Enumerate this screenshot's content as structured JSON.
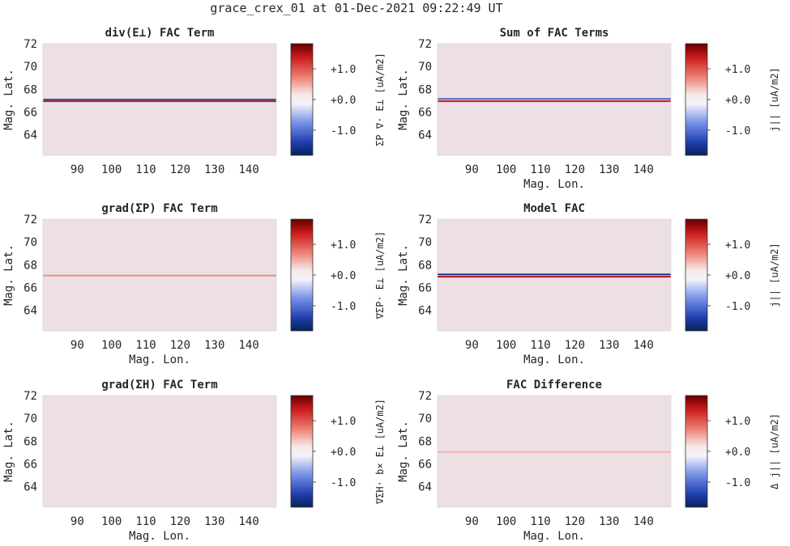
{
  "figure": {
    "suptitle": "grace_crex_01 at 01-Dec-2021 09:22:49 UT",
    "background_color": "#ece0e4",
    "colormap": "blue-white-red diverging"
  },
  "chart_data": [
    {
      "type": "heatmap",
      "title": "div(E⊥) FAC Term",
      "xlabel": "",
      "ylabel": "Mag. Lat.",
      "xlim": [
        80,
        148
      ],
      "ylim": [
        62.2,
        72
      ],
      "xticks": [
        "90",
        "100",
        "110",
        "120",
        "130",
        "140"
      ],
      "yticks": [
        "64",
        "66",
        "68",
        "70",
        "72"
      ],
      "bands": [
        {
          "lat": 67.1,
          "color": "#3a50c8"
        },
        {
          "lat": 66.95,
          "color": "#b01818"
        }
      ],
      "colorbar": {
        "label": "ΣP ∇· E⊥ [uA/m2]",
        "ticks": [
          "+1.0",
          "+0.0",
          "-1.0"
        ]
      }
    },
    {
      "type": "heatmap",
      "title": "Sum of FAC Terms",
      "xlabel": "Mag. Lon.",
      "ylabel": "Mag. Lat.",
      "xlim": [
        80,
        148
      ],
      "ylim": [
        62.2,
        72
      ],
      "xticks": [
        "90",
        "100",
        "110",
        "120",
        "130",
        "140"
      ],
      "yticks": [
        "64",
        "66",
        "68",
        "70",
        "72"
      ],
      "bands": [
        {
          "lat": 67.15,
          "color": "#4a60d0"
        },
        {
          "lat": 66.95,
          "color": "#c02020"
        }
      ],
      "colorbar": {
        "label": "j|| [uA/m2]",
        "ticks": [
          "+1.0",
          "+0.0",
          "-1.0"
        ]
      }
    },
    {
      "type": "heatmap",
      "title": "grad(ΣP) FAC Term",
      "xlabel": "Mag. Lon.",
      "ylabel": "Mag. Lat.",
      "xlim": [
        80,
        148
      ],
      "ylim": [
        62.2,
        72
      ],
      "xticks": [
        "90",
        "100",
        "110",
        "120",
        "130",
        "140"
      ],
      "yticks": [
        "64",
        "66",
        "68",
        "70",
        "72"
      ],
      "bands": [
        {
          "lat": 67.05,
          "color": "#f08a8a"
        }
      ],
      "colorbar": {
        "label": "∇ΣP· E⊥ [uA/m2]",
        "ticks": [
          "+1.0",
          "+0.0",
          "-1.0"
        ]
      }
    },
    {
      "type": "heatmap",
      "title": "Model FAC",
      "xlabel": "Mag. Lon.",
      "ylabel": "Mag. Lat.",
      "xlim": [
        80,
        148
      ],
      "ylim": [
        62.2,
        72
      ],
      "xticks": [
        "90",
        "100",
        "110",
        "120",
        "130",
        "140"
      ],
      "yticks": [
        "64",
        "66",
        "68",
        "70",
        "72"
      ],
      "bands": [
        {
          "lat": 67.15,
          "color": "#1a2f8a"
        },
        {
          "lat": 66.95,
          "color": "#b01818"
        }
      ],
      "colorbar": {
        "label": "j|| [uA/m2]",
        "ticks": [
          "+1.0",
          "+0.0",
          "-1.0"
        ]
      }
    },
    {
      "type": "heatmap",
      "title": "grad(ΣH) FAC Term",
      "xlabel": "Mag. Lon.",
      "ylabel": "Mag. Lat.",
      "xlim": [
        80,
        148
      ],
      "ylim": [
        62.2,
        72
      ],
      "xticks": [
        "90",
        "100",
        "110",
        "120",
        "130",
        "140"
      ],
      "yticks": [
        "64",
        "66",
        "68",
        "70",
        "72"
      ],
      "bands": [],
      "colorbar": {
        "label": "∇ΣH· b× E⊥ [uA/m2]",
        "ticks": [
          "+1.0",
          "+0.0",
          "-1.0"
        ]
      }
    },
    {
      "type": "heatmap",
      "title": "FAC Difference",
      "xlabel": "Mag. Lon.",
      "ylabel": "Mag. Lat.",
      "xlim": [
        80,
        148
      ],
      "ylim": [
        62.2,
        72
      ],
      "xticks": [
        "90",
        "100",
        "110",
        "120",
        "130",
        "140"
      ],
      "yticks": [
        "64",
        "66",
        "68",
        "70",
        "72"
      ],
      "bands": [
        {
          "lat": 67.05,
          "color": "#f4b0b0"
        }
      ],
      "colorbar": {
        "label": "Δ j|| [uA/m2]",
        "ticks": [
          "+1.0",
          "+0.0",
          "-1.0"
        ]
      }
    }
  ]
}
